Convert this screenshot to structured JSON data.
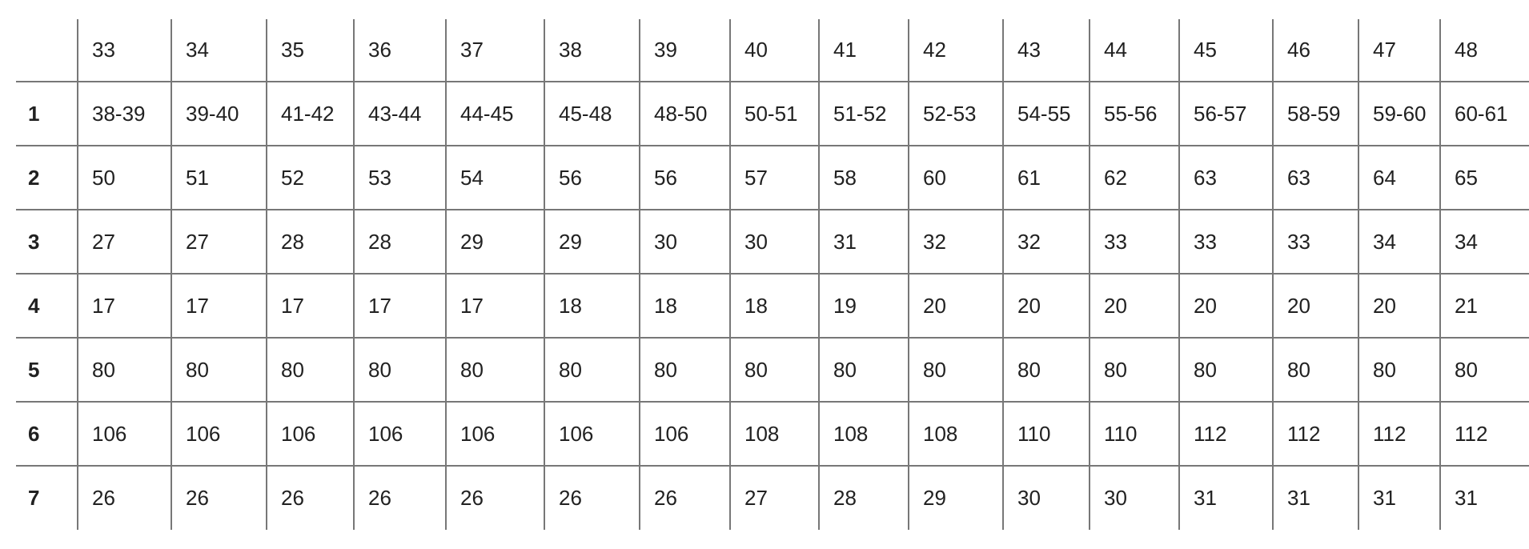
{
  "table": {
    "header": [
      "",
      "33",
      "34",
      "35",
      "36",
      "37",
      "38",
      "39",
      "40",
      "41",
      "42",
      "43",
      "44",
      "45",
      "46",
      "47",
      "48"
    ],
    "rows": [
      {
        "label": "1",
        "cells": [
          "38-39",
          "39-40",
          "41-42",
          "43-44",
          "44-45",
          "45-48",
          "48-50",
          "50-51",
          "51-52",
          "52-53",
          "54-55",
          "55-56",
          "56-57",
          "58-59",
          "59-60",
          "60-61"
        ]
      },
      {
        "label": "2",
        "cells": [
          "50",
          "51",
          "52",
          "53",
          "54",
          "56",
          "56",
          "57",
          "58",
          "60",
          "61",
          "62",
          "63",
          "63",
          "64",
          "65"
        ]
      },
      {
        "label": "3",
        "cells": [
          "27",
          "27",
          "28",
          "28",
          "29",
          "29",
          "30",
          "30",
          "31",
          "32",
          "32",
          "33",
          "33",
          "33",
          "34",
          "34"
        ]
      },
      {
        "label": "4",
        "cells": [
          "17",
          "17",
          "17",
          "17",
          "17",
          "18",
          "18",
          "18",
          "19",
          "20",
          "20",
          "20",
          "20",
          "20",
          "20",
          "21"
        ]
      },
      {
        "label": "5",
        "cells": [
          "80",
          "80",
          "80",
          "80",
          "80",
          "80",
          "80",
          "80",
          "80",
          "80",
          "80",
          "80",
          "80",
          "80",
          "80",
          "80"
        ]
      },
      {
        "label": "6",
        "cells": [
          "106",
          "106",
          "106",
          "106",
          "106",
          "106",
          "106",
          "108",
          "108",
          "108",
          "110",
          "110",
          "112",
          "112",
          "112",
          "112"
        ]
      },
      {
        "label": "7",
        "cells": [
          "26",
          "26",
          "26",
          "26",
          "26",
          "26",
          "26",
          "27",
          "28",
          "29",
          "30",
          "30",
          "31",
          "31",
          "31",
          "31"
        ]
      }
    ]
  }
}
